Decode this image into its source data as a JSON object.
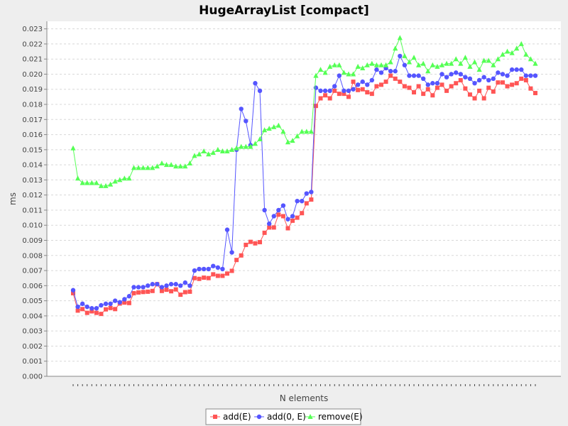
{
  "chart_data": {
    "type": "line",
    "title": "HugeArrayList [compact]",
    "xlabel": "N elements",
    "ylabel": "ms",
    "ylim": [
      0,
      0.0235
    ],
    "yticks": [
      "0.000",
      "0.001",
      "0.002",
      "0.003",
      "0.004",
      "0.005",
      "0.006",
      "0.007",
      "0.008",
      "0.009",
      "0.010",
      "0.011",
      "0.012",
      "0.013",
      "0.014",
      "0.015",
      "0.016",
      "0.017",
      "0.018",
      "0.019",
      "0.020",
      "0.021",
      "0.022",
      "0.023"
    ],
    "grid": true,
    "legend_position": "bottom",
    "x": [
      1,
      2,
      3,
      4,
      5,
      6,
      7,
      8,
      9,
      10,
      11,
      12,
      13,
      14,
      15,
      16,
      17,
      18,
      19,
      20,
      21,
      22,
      23,
      24,
      25,
      26,
      27,
      28,
      29,
      30,
      31,
      32,
      33,
      34,
      35,
      36,
      37,
      38,
      39,
      40,
      41,
      42,
      43,
      44,
      45,
      46,
      47,
      48,
      49,
      50,
      51,
      52,
      53,
      54,
      55,
      56,
      57,
      58,
      59,
      60,
      61,
      62,
      63,
      64,
      65,
      66,
      67,
      68,
      69,
      70,
      71,
      72,
      73,
      74,
      75,
      76,
      77,
      78,
      79,
      80,
      81,
      82,
      83,
      84,
      85,
      86,
      87,
      88,
      89,
      90,
      91,
      92,
      93,
      94,
      95,
      96,
      97,
      98,
      99,
      100
    ],
    "series": [
      {
        "name": "add(E)",
        "color": "#ff5555",
        "marker": "square",
        "values": [
          0.0055,
          0.00435,
          0.00445,
          0.0042,
          0.0043,
          0.0042,
          0.00413,
          0.00443,
          0.00452,
          0.00445,
          0.00482,
          0.00488,
          0.00485,
          0.0055,
          0.00555,
          0.00558,
          0.0056,
          0.00565,
          0.0061,
          0.00565,
          0.00573,
          0.00563,
          0.00575,
          0.0054,
          0.00557,
          0.0056,
          0.0065,
          0.00645,
          0.00653,
          0.0065,
          0.00675,
          0.00665,
          0.00665,
          0.0068,
          0.00698,
          0.0077,
          0.008,
          0.0087,
          0.0089,
          0.0088,
          0.00888,
          0.0095,
          0.00985,
          0.00985,
          0.0107,
          0.0106,
          0.0098,
          0.0103,
          0.0105,
          0.0108,
          0.01145,
          0.0117,
          0.0179,
          0.0184,
          0.0186,
          0.0184,
          0.0189,
          0.0187,
          0.0187,
          0.0185,
          0.0195,
          0.01895,
          0.019,
          0.0188,
          0.0187,
          0.0192,
          0.0193,
          0.0195,
          0.0199,
          0.0197,
          0.0195,
          0.0192,
          0.0191,
          0.0188,
          0.0192,
          0.0187,
          0.019,
          0.0186,
          0.0191,
          0.0193,
          0.0189,
          0.0192,
          0.0194,
          0.0196,
          0.01905,
          0.01865,
          0.0184,
          0.0189,
          0.0184,
          0.0191,
          0.01885,
          0.01945,
          0.01945,
          0.0192,
          0.0193,
          0.0194,
          0.0197,
          0.0196,
          0.01905,
          0.01875
        ]
      },
      {
        "name": "add(0, E)",
        "color": "#5555ff",
        "marker": "circle",
        "values": [
          0.0057,
          0.0046,
          0.0048,
          0.0046,
          0.0045,
          0.0045,
          0.0047,
          0.0048,
          0.0048,
          0.005,
          0.0049,
          0.0051,
          0.0053,
          0.0059,
          0.0059,
          0.0059,
          0.006,
          0.0061,
          0.0061,
          0.0059,
          0.006,
          0.0061,
          0.0061,
          0.006,
          0.0062,
          0.006,
          0.007,
          0.0071,
          0.0071,
          0.0071,
          0.0073,
          0.0072,
          0.0071,
          0.0097,
          0.0082,
          0.015,
          0.0177,
          0.0169,
          0.0153,
          0.0194,
          0.0189,
          0.011,
          0.0101,
          0.0106,
          0.011,
          0.0113,
          0.0104,
          0.0106,
          0.0116,
          0.0116,
          0.0121,
          0.0122,
          0.0191,
          0.0189,
          0.0189,
          0.0189,
          0.0192,
          0.0199,
          0.0189,
          0.0189,
          0.019,
          0.0193,
          0.0195,
          0.0193,
          0.0196,
          0.0203,
          0.0201,
          0.0204,
          0.0202,
          0.0202,
          0.0212,
          0.0206,
          0.0199,
          0.0199,
          0.0199,
          0.0197,
          0.0193,
          0.0194,
          0.0194,
          0.02,
          0.0198,
          0.02,
          0.0201,
          0.02,
          0.0198,
          0.0197,
          0.0194,
          0.0196,
          0.0198,
          0.0196,
          0.0197,
          0.0201,
          0.02,
          0.0199,
          0.0203,
          0.0203,
          0.0203,
          0.0199,
          0.0199,
          0.0199
        ]
      },
      {
        "name": "remove(E)",
        "color": "#55ff55",
        "marker": "triangle",
        "values": [
          0.0151,
          0.0131,
          0.0128,
          0.0128,
          0.0128,
          0.0128,
          0.0126,
          0.0126,
          0.0127,
          0.0129,
          0.013,
          0.0131,
          0.0131,
          0.0138,
          0.0138,
          0.0138,
          0.0138,
          0.0138,
          0.0139,
          0.0141,
          0.014,
          0.014,
          0.0139,
          0.0139,
          0.0139,
          0.0141,
          0.0146,
          0.0147,
          0.0149,
          0.0147,
          0.0148,
          0.015,
          0.0149,
          0.0149,
          0.015,
          0.0151,
          0.0152,
          0.0152,
          0.0152,
          0.0154,
          0.0157,
          0.0163,
          0.0164,
          0.0165,
          0.0166,
          0.0162,
          0.0155,
          0.0156,
          0.0159,
          0.0162,
          0.0162,
          0.0162,
          0.0199,
          0.0203,
          0.0201,
          0.0205,
          0.0206,
          0.0206,
          0.0201,
          0.02,
          0.02,
          0.0205,
          0.0204,
          0.0206,
          0.0207,
          0.0206,
          0.0206,
          0.0206,
          0.0208,
          0.0217,
          0.0224,
          0.0212,
          0.0208,
          0.0211,
          0.0206,
          0.0207,
          0.0202,
          0.0206,
          0.0205,
          0.0206,
          0.0207,
          0.0207,
          0.021,
          0.0207,
          0.0211,
          0.0205,
          0.0208,
          0.0203,
          0.0209,
          0.0209,
          0.0206,
          0.021,
          0.0213,
          0.0215,
          0.0214,
          0.0217,
          0.022,
          0.0213,
          0.021,
          0.0207
        ]
      }
    ]
  }
}
